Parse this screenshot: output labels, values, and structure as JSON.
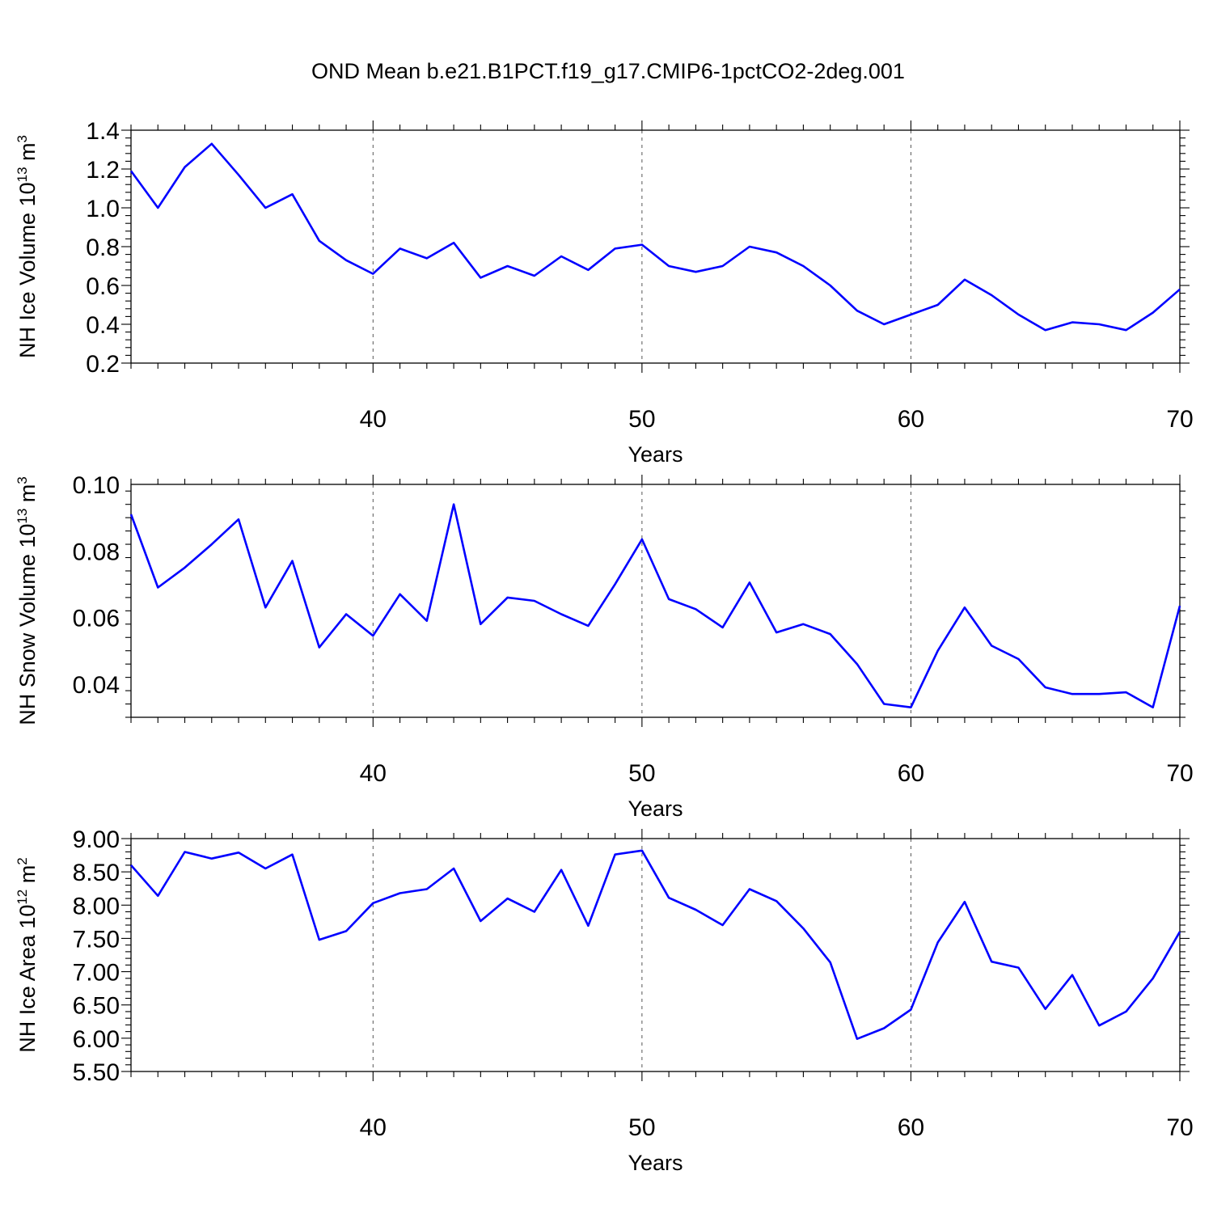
{
  "title": "OND Mean b.e21.B1PCT.f19_g17.CMIP6-1pctCO2-2deg.001",
  "colors": {
    "line": "#0000ff",
    "axes": "#000000",
    "grid": "#555555"
  },
  "chart_data": [
    {
      "type": "line",
      "ylabel": "NH Ice Volume 10",
      "ylabel_exp": "13",
      "ylabel_unit": " m",
      "ylabel_unit_exp": "3",
      "xlabel": "Years",
      "xlim": [
        31,
        70
      ],
      "ylim": [
        0.2,
        1.4
      ],
      "yticks": [
        0.2,
        0.4,
        0.6,
        0.8,
        1.0,
        1.2,
        1.4
      ],
      "ytick_labels": [
        "0.2",
        "0.4",
        "0.6",
        "0.8",
        "1.0",
        "1.2",
        "1.4"
      ],
      "xticks": [
        40,
        50,
        60,
        70
      ],
      "xtick_labels": [
        "40",
        "50",
        "60",
        "70"
      ],
      "grid_x": [
        40,
        50,
        60
      ],
      "series": [
        {
          "name": "NH Ice Volume",
          "x": [
            31,
            32,
            33,
            34,
            35,
            36,
            37,
            38,
            39,
            40,
            41,
            42,
            43,
            44,
            45,
            46,
            47,
            48,
            49,
            50,
            51,
            52,
            53,
            54,
            55,
            56,
            57,
            58,
            59,
            60,
            61,
            62,
            63,
            64,
            65,
            66,
            67,
            68,
            69,
            70
          ],
          "values": [
            1.19,
            1.0,
            1.21,
            1.33,
            1.17,
            1.0,
            1.07,
            0.83,
            0.73,
            0.66,
            0.79,
            0.74,
            0.82,
            0.64,
            0.7,
            0.65,
            0.75,
            0.68,
            0.79,
            0.81,
            0.7,
            0.67,
            0.7,
            0.8,
            0.77,
            0.7,
            0.6,
            0.47,
            0.4,
            0.45,
            0.5,
            0.63,
            0.55,
            0.45,
            0.37,
            0.41,
            0.4,
            0.37,
            0.46,
            0.58
          ]
        }
      ]
    },
    {
      "type": "line",
      "ylabel": "NH Snow Volume 10",
      "ylabel_exp": "13",
      "ylabel_unit": " m",
      "ylabel_unit_exp": "3",
      "xlabel": "Years",
      "xlim": [
        31,
        70
      ],
      "ylim": [
        0.03,
        0.1
      ],
      "yticks": [
        0.04,
        0.06,
        0.08,
        0.1
      ],
      "ytick_labels": [
        "0.04",
        "0.06",
        "0.08",
        "0.10"
      ],
      "xticks": [
        40,
        50,
        60,
        70
      ],
      "xtick_labels": [
        "40",
        "50",
        "60",
        "70"
      ],
      "grid_x": [
        40,
        50,
        60
      ],
      "series": [
        {
          "name": "NH Snow Volume",
          "x": [
            31,
            32,
            33,
            34,
            35,
            36,
            37,
            38,
            39,
            40,
            41,
            42,
            43,
            44,
            45,
            46,
            47,
            48,
            49,
            50,
            51,
            52,
            53,
            54,
            55,
            56,
            57,
            58,
            59,
            60,
            61,
            62,
            63,
            64,
            65,
            66,
            67,
            68,
            69,
            70
          ],
          "values": [
            0.091,
            0.069,
            0.075,
            0.082,
            0.0895,
            0.063,
            0.077,
            0.051,
            0.061,
            0.0545,
            0.067,
            0.059,
            0.094,
            0.058,
            0.066,
            0.065,
            0.061,
            0.0575,
            0.07,
            0.0835,
            0.0655,
            0.0625,
            0.057,
            0.0705,
            0.0555,
            0.058,
            0.055,
            0.046,
            0.034,
            0.033,
            0.05,
            0.063,
            0.0515,
            0.0475,
            0.039,
            0.037,
            0.037,
            0.0375,
            0.033,
            0.0635
          ]
        }
      ]
    },
    {
      "type": "line",
      "ylabel": "NH Ice Area 10",
      "ylabel_exp": "12",
      "ylabel_unit": " m",
      "ylabel_unit_exp": "2",
      "xlabel": "Years",
      "xlim": [
        31,
        70
      ],
      "ylim": [
        5.5,
        9.0
      ],
      "yticks": [
        5.5,
        6.0,
        6.5,
        7.0,
        7.5,
        8.0,
        8.5,
        9.0
      ],
      "ytick_labels": [
        "5.50",
        "6.00",
        "6.50",
        "7.00",
        "7.50",
        "8.00",
        "8.50",
        "9.00"
      ],
      "xticks": [
        40,
        50,
        60,
        70
      ],
      "xtick_labels": [
        "40",
        "50",
        "60",
        "70"
      ],
      "grid_x": [
        40,
        50,
        60
      ],
      "series": [
        {
          "name": "NH Ice Area",
          "x": [
            31,
            32,
            33,
            34,
            35,
            36,
            37,
            38,
            39,
            40,
            41,
            42,
            43,
            44,
            45,
            46,
            47,
            48,
            49,
            50,
            51,
            52,
            53,
            54,
            55,
            56,
            57,
            58,
            59,
            60,
            61,
            62,
            63,
            64,
            65,
            66,
            67,
            68,
            69,
            70
          ],
          "values": [
            8.6,
            8.14,
            8.8,
            8.7,
            8.79,
            8.55,
            8.76,
            7.48,
            7.61,
            8.03,
            8.18,
            8.24,
            8.55,
            7.76,
            8.1,
            7.9,
            8.53,
            7.69,
            8.76,
            8.82,
            8.11,
            7.93,
            7.7,
            8.24,
            8.06,
            7.65,
            7.14,
            5.99,
            6.15,
            6.43,
            7.44,
            8.05,
            7.15,
            7.06,
            6.44,
            6.95,
            6.19,
            6.4,
            6.9,
            7.6
          ]
        }
      ]
    }
  ]
}
